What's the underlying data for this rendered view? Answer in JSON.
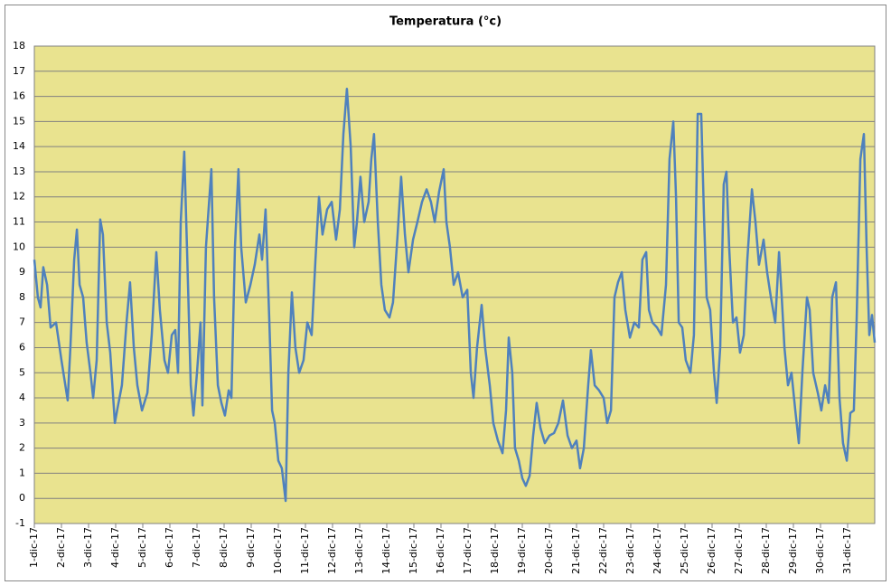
{
  "chart_data": {
    "type": "line",
    "title": "Temperatura (°c)",
    "x": [
      0,
      0.13,
      0.23,
      0.33,
      0.47,
      0.6,
      0.8,
      1.0,
      1.23,
      1.33,
      1.47,
      1.57,
      1.67,
      1.8,
      1.93,
      2.07,
      2.17,
      2.3,
      2.43,
      2.53,
      2.67,
      2.8,
      2.97,
      3.07,
      3.23,
      3.4,
      3.53,
      3.67,
      3.8,
      3.97,
      4.17,
      4.33,
      4.5,
      4.63,
      4.8,
      4.93,
      5.07,
      5.2,
      5.3,
      5.4,
      5.53,
      5.63,
      5.77,
      5.87,
      6.0,
      6.13,
      6.2,
      6.33,
      6.53,
      6.63,
      6.77,
      6.9,
      7.03,
      7.17,
      7.27,
      7.4,
      7.53,
      7.63,
      7.8,
      7.97,
      8.13,
      8.3,
      8.4,
      8.53,
      8.67,
      8.77,
      8.87,
      9.0,
      9.13,
      9.27,
      9.37,
      9.5,
      9.63,
      9.77,
      9.93,
      10.07,
      10.23,
      10.37,
      10.5,
      10.63,
      10.8,
      10.97,
      11.13,
      11.27,
      11.4,
      11.53,
      11.67,
      11.8,
      11.9,
      12.03,
      12.17,
      12.33,
      12.43,
      12.53,
      12.67,
      12.8,
      12.93,
      13.1,
      13.23,
      13.4,
      13.53,
      13.67,
      13.8,
      13.97,
      14.13,
      14.3,
      14.47,
      14.63,
      14.77,
      14.93,
      15.1,
      15.2,
      15.33,
      15.47,
      15.63,
      15.8,
      15.97,
      16.1,
      16.2,
      16.33,
      16.5,
      16.63,
      16.8,
      16.93,
      17.1,
      17.27,
      17.4,
      17.5,
      17.63,
      17.73,
      17.87,
      18.0,
      18.13,
      18.27,
      18.4,
      18.53,
      18.67,
      18.83,
      19.0,
      19.17,
      19.33,
      19.5,
      19.67,
      19.83,
      20.0,
      20.13,
      20.27,
      20.43,
      20.53,
      20.67,
      20.83,
      21.0,
      21.13,
      21.27,
      21.4,
      21.53,
      21.67,
      21.8,
      21.97,
      22.13,
      22.3,
      22.43,
      22.57,
      22.67,
      22.8,
      22.97,
      23.13,
      23.3,
      23.43,
      23.57,
      23.67,
      23.77,
      23.9,
      24.03,
      24.2,
      24.33,
      24.47,
      24.6,
      24.7,
      24.8,
      24.93,
      25.07,
      25.17,
      25.3,
      25.43,
      25.53,
      25.63,
      25.77,
      25.9,
      26.03,
      26.17,
      26.3,
      26.47,
      26.6,
      26.73,
      26.9,
      27.03,
      27.17,
      27.33,
      27.47,
      27.57,
      27.67,
      27.8,
      27.93,
      28.07,
      28.2,
      28.33,
      28.5,
      28.6,
      28.73,
      28.9,
      29.03,
      29.17,
      29.3,
      29.43,
      29.57,
      29.7,
      29.83,
      29.97,
      30.1,
      30.23,
      30.33,
      30.47,
      30.6,
      30.7,
      30.8,
      30.9,
      31.0
    ],
    "series": [
      {
        "name": "Temperatura",
        "color": "#4f81bd",
        "values": [
          9.5,
          8.0,
          7.6,
          9.2,
          8.5,
          6.8,
          7.0,
          5.5,
          3.9,
          6,
          9.5,
          10.7,
          8.5,
          8.0,
          6.2,
          5.0,
          4.0,
          5.5,
          11.1,
          10.5,
          7,
          5.8,
          3.0,
          3.6,
          4.5,
          7,
          8.6,
          6,
          4.5,
          3.5,
          4.2,
          6.5,
          9.8,
          7.5,
          5.5,
          5.0,
          6.5,
          6.7,
          5.0,
          11,
          13.8,
          10,
          4.5,
          3.3,
          5,
          7,
          3.7,
          10,
          13.1,
          8,
          4.5,
          3.8,
          3.3,
          4.3,
          4.0,
          10,
          13.1,
          10,
          7.8,
          8.5,
          9.3,
          10.5,
          9.5,
          11.5,
          7,
          3.5,
          3.0,
          1.5,
          1.2,
          -0.1,
          5,
          8.2,
          6.0,
          5.0,
          5.5,
          7.0,
          6.5,
          9.5,
          12.0,
          10.5,
          11.5,
          11.8,
          10.3,
          11.5,
          14.5,
          16.3,
          14,
          10,
          11,
          12.8,
          11.0,
          11.8,
          13.5,
          14.5,
          11,
          8.5,
          7.5,
          7.2,
          7.8,
          10.5,
          12.8,
          10.5,
          9.0,
          10.3,
          11,
          11.8,
          12.3,
          11.8,
          11,
          12.2,
          13.1,
          11,
          10,
          8.5,
          9,
          8.0,
          8.3,
          5,
          4,
          6,
          7.7,
          6,
          4.5,
          3,
          2.3,
          1.8,
          3.5,
          6.4,
          5,
          2,
          1.5,
          0.8,
          0.5,
          0.9,
          2.5,
          3.8,
          2.8,
          2.2,
          2.5,
          2.6,
          3.0,
          3.9,
          2.5,
          2.0,
          2.3,
          1.2,
          2.0,
          4.5,
          5.9,
          4.5,
          4.3,
          4.0,
          3.0,
          3.5,
          8.0,
          8.6,
          9.0,
          7.5,
          6.4,
          7.0,
          6.8,
          9.5,
          9.8,
          7.5,
          7.0,
          6.8,
          6.5,
          8.5,
          13.5,
          15.0,
          12,
          7,
          6.8,
          5.5,
          5.0,
          6.5,
          15.3,
          15.3,
          11.3,
          8,
          7.5,
          5,
          3.8,
          6,
          12.5,
          13.0,
          10,
          7,
          7.2,
          5.8,
          6.5,
          9.5,
          12.3,
          11,
          9.3,
          10.3,
          9.0,
          8.0,
          7.0,
          9.8,
          8.0,
          6,
          4.5,
          5,
          3.5,
          2.2,
          5,
          8.0,
          7.5,
          5,
          4.2,
          3.5,
          4.5,
          3.8,
          8,
          8.6,
          4,
          2.2,
          1.5,
          3.4,
          3.5,
          7,
          13.5,
          14.5,
          10,
          6.5,
          7.3,
          6.2
        ]
      }
    ],
    "xlim": [
      0,
      31
    ],
    "xticks": [
      {
        "value": 0,
        "label": "1-dic-17"
      },
      {
        "value": 1,
        "label": "2-dic-17"
      },
      {
        "value": 2,
        "label": "3-dic-17"
      },
      {
        "value": 3,
        "label": "4-dic-17"
      },
      {
        "value": 4,
        "label": "5-dic-17"
      },
      {
        "value": 5,
        "label": "6-dic-17"
      },
      {
        "value": 6,
        "label": "7-dic-17"
      },
      {
        "value": 7,
        "label": "8-dic-17"
      },
      {
        "value": 8,
        "label": "9-dic-17"
      },
      {
        "value": 9,
        "label": "10-dic-17"
      },
      {
        "value": 10,
        "label": "11-dic-17"
      },
      {
        "value": 11,
        "label": "12-dic-17"
      },
      {
        "value": 12,
        "label": "13-dic-17"
      },
      {
        "value": 13,
        "label": "14-dic-17"
      },
      {
        "value": 14,
        "label": "15-dic-17"
      },
      {
        "value": 15,
        "label": "16-dic-17"
      },
      {
        "value": 16,
        "label": "17-dic-17"
      },
      {
        "value": 17,
        "label": "18-dic-17"
      },
      {
        "value": 18,
        "label": "19-dic-17"
      },
      {
        "value": 19,
        "label": "20-dic-17"
      },
      {
        "value": 20,
        "label": "21-dic-17"
      },
      {
        "value": 21,
        "label": "22-dic-17"
      },
      {
        "value": 22,
        "label": "23-dic-17"
      },
      {
        "value": 23,
        "label": "24-dic-17"
      },
      {
        "value": 24,
        "label": "25-dic-17"
      },
      {
        "value": 25,
        "label": "26-dic-17"
      },
      {
        "value": 26,
        "label": "27-dic-17"
      },
      {
        "value": 27,
        "label": "28-dic-17"
      },
      {
        "value": 28,
        "label": "29-dic-17"
      },
      {
        "value": 29,
        "label": "30-dic-17"
      },
      {
        "value": 30,
        "label": "31-dic-17"
      }
    ],
    "ylim": [
      -1,
      18
    ],
    "yticks": [
      -1,
      0,
      1,
      2,
      3,
      4,
      5,
      6,
      7,
      8,
      9,
      10,
      11,
      12,
      13,
      14,
      15,
      16,
      17,
      18
    ],
    "grid": true,
    "plot_background": "#e9e38f"
  }
}
